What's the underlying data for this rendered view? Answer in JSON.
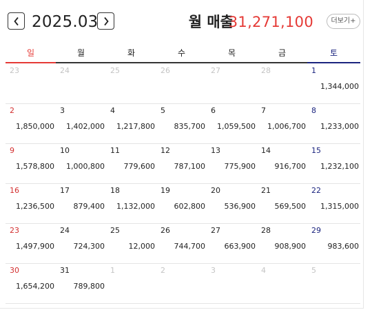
{
  "header": {
    "month": "2025.03",
    "sales_label": "월 매출",
    "sales_value": "31,271,100",
    "more_label": "더보기+",
    "accent_red": "#e53935",
    "saturday_blue": "#1a237e"
  },
  "weekdays": [
    "일",
    "월",
    "화",
    "수",
    "목",
    "금",
    "토"
  ],
  "weeks": [
    [
      {
        "day": "23",
        "amount": "",
        "other": true
      },
      {
        "day": "24",
        "amount": "",
        "other": true
      },
      {
        "day": "25",
        "amount": "",
        "other": true
      },
      {
        "day": "26",
        "amount": "",
        "other": true
      },
      {
        "day": "27",
        "amount": "",
        "other": true
      },
      {
        "day": "28",
        "amount": "",
        "other": true
      },
      {
        "day": "1",
        "amount": "1,344,000",
        "other": false
      }
    ],
    [
      {
        "day": "2",
        "amount": "1,850,000",
        "other": false
      },
      {
        "day": "3",
        "amount": "1,402,000",
        "other": false
      },
      {
        "day": "4",
        "amount": "1,217,800",
        "other": false
      },
      {
        "day": "5",
        "amount": "835,700",
        "other": false
      },
      {
        "day": "6",
        "amount": "1,059,500",
        "other": false
      },
      {
        "day": "7",
        "amount": "1,006,700",
        "other": false
      },
      {
        "day": "8",
        "amount": "1,233,000",
        "other": false
      }
    ],
    [
      {
        "day": "9",
        "amount": "1,578,800",
        "other": false
      },
      {
        "day": "10",
        "amount": "1,000,800",
        "other": false
      },
      {
        "day": "11",
        "amount": "779,600",
        "other": false
      },
      {
        "day": "12",
        "amount": "787,100",
        "other": false
      },
      {
        "day": "13",
        "amount": "775,900",
        "other": false
      },
      {
        "day": "14",
        "amount": "916,700",
        "other": false
      },
      {
        "day": "15",
        "amount": "1,232,100",
        "other": false
      }
    ],
    [
      {
        "day": "16",
        "amount": "1,236,500",
        "other": false
      },
      {
        "day": "17",
        "amount": "879,400",
        "other": false
      },
      {
        "day": "18",
        "amount": "1,132,000",
        "other": false
      },
      {
        "day": "19",
        "amount": "602,800",
        "other": false
      },
      {
        "day": "20",
        "amount": "536,900",
        "other": false
      },
      {
        "day": "21",
        "amount": "569,500",
        "other": false
      },
      {
        "day": "22",
        "amount": "1,315,000",
        "other": false
      }
    ],
    [
      {
        "day": "23",
        "amount": "1,497,900",
        "other": false
      },
      {
        "day": "24",
        "amount": "724,300",
        "other": false
      },
      {
        "day": "25",
        "amount": "12,000",
        "other": false
      },
      {
        "day": "26",
        "amount": "744,700",
        "other": false
      },
      {
        "day": "27",
        "amount": "663,900",
        "other": false
      },
      {
        "day": "28",
        "amount": "908,900",
        "other": false
      },
      {
        "day": "29",
        "amount": "983,600",
        "other": false
      }
    ],
    [
      {
        "day": "30",
        "amount": "1,654,200",
        "other": false
      },
      {
        "day": "31",
        "amount": "789,800",
        "other": false
      },
      {
        "day": "1",
        "amount": "",
        "other": true
      },
      {
        "day": "2",
        "amount": "",
        "other": true
      },
      {
        "day": "3",
        "amount": "",
        "other": true
      },
      {
        "day": "4",
        "amount": "",
        "other": true
      },
      {
        "day": "5",
        "amount": "",
        "other": true
      }
    ]
  ]
}
